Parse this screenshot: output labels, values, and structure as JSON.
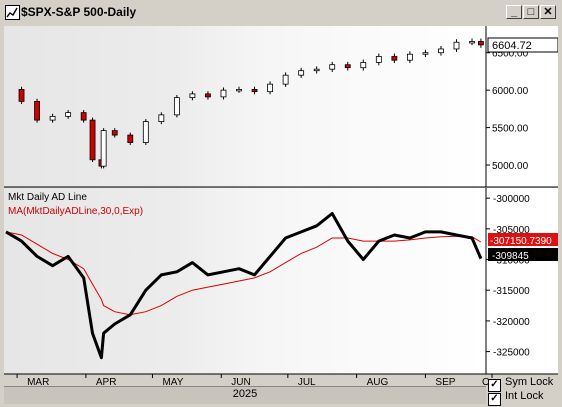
{
  "window": {
    "title": "$SPX-S&P 500-Daily",
    "minimize_glyph": "_",
    "maximize_glyph": "□",
    "close_glyph": "✕"
  },
  "price_panel": {
    "last_price_label": "6604.72",
    "y_ticks": [
      {
        "label": "6500.00",
        "v": 6500
      },
      {
        "label": "6000.00",
        "v": 6000
      },
      {
        "label": "5500.00",
        "v": 5500
      },
      {
        "label": "5000.00",
        "v": 5000
      }
    ]
  },
  "ad_panel": {
    "series_label": "Mkt Daily AD Line",
    "ma_label": "MA(MktDailyADLine,30,0,Exp)",
    "ma_value_label": "-307150.7390",
    "last_value_label": "-309845",
    "y_ticks": [
      {
        "label": "-300000",
        "v": -300000
      },
      {
        "label": "-305000",
        "v": -305000
      },
      {
        "label": "-310000",
        "v": -310000
      },
      {
        "label": "-315000",
        "v": -315000
      },
      {
        "label": "-320000",
        "v": -320000
      },
      {
        "label": "-325000",
        "v": -325000
      }
    ]
  },
  "x_axis": {
    "months": [
      "MAR",
      "APR",
      "MAY",
      "JUN",
      "JUL",
      "AUG",
      "SEP",
      "O"
    ],
    "year": "2025"
  },
  "controls": {
    "sym_lock": {
      "label": "Sym Lock",
      "checked": true
    },
    "int_lock": {
      "label": "Int Lock",
      "checked": true
    }
  },
  "colors": {
    "up_candle": "#ffffff",
    "down_candle": "#cc0000",
    "ad_line": "#000000",
    "ma_line": "#dd0000",
    "ma_label": "#cc0000"
  },
  "chart_data": {
    "type": "line",
    "x": [
      "2025-02-24",
      "2025-03-03",
      "2025-03-10",
      "2025-03-17",
      "2025-03-24",
      "2025-03-31",
      "2025-04-04",
      "2025-04-08",
      "2025-04-09",
      "2025-04-14",
      "2025-04-21",
      "2025-04-28",
      "2025-05-05",
      "2025-05-12",
      "2025-05-19",
      "2025-05-26",
      "2025-06-02",
      "2025-06-09",
      "2025-06-16",
      "2025-06-23",
      "2025-06-30",
      "2025-07-07",
      "2025-07-14",
      "2025-07-21",
      "2025-07-28",
      "2025-08-04",
      "2025-08-11",
      "2025-08-18",
      "2025-08-25",
      "2025-09-01",
      "2025-09-08",
      "2025-09-15",
      "2025-09-22",
      "2025-09-26"
    ],
    "series": [
      {
        "name": "$SPX-S&P 500-Daily",
        "type": "candlestick",
        "values": [
          6010,
          5850,
          5600,
          5650,
          5700,
          5600,
          5070,
          4985,
          5460,
          5400,
          5300,
          5580,
          5670,
          5900,
          5950,
          5910,
          6000,
          6010,
          5980,
          6080,
          6200,
          6260,
          6280,
          6340,
          6300,
          6370,
          6450,
          6400,
          6480,
          6500,
          6550,
          6640,
          6650,
          6604.72
        ]
      },
      {
        "name": "Mkt Daily AD Line",
        "values": [
          -305500,
          -307000,
          -309500,
          -311000,
          -309500,
          -313000,
          -322000,
          -326000,
          -322000,
          -320500,
          -319000,
          -315000,
          -312500,
          -312000,
          -310500,
          -312500,
          -312000,
          -311500,
          -312500,
          -309500,
          -306500,
          -305500,
          -304500,
          -302500,
          -307000,
          -310000,
          -307000,
          -306000,
          -306500,
          -305500,
          -305500,
          -306000,
          -306500,
          -309845
        ]
      },
      {
        "name": "MA(MktDailyADLine,30,0,Exp)",
        "values": [
          -305500,
          -306000,
          -307500,
          -309000,
          -310000,
          -311500,
          -314000,
          -316500,
          -317500,
          -318500,
          -319000,
          -318500,
          -317500,
          -316000,
          -315000,
          -314500,
          -314000,
          -313500,
          -313000,
          -312000,
          -310500,
          -309000,
          -308000,
          -306500,
          -306500,
          -307000,
          -307000,
          -307000,
          -306800,
          -306500,
          -306300,
          -306200,
          -306300,
          -307150.739
        ]
      }
    ],
    "price_ylim": [
      4800,
      6750
    ],
    "ad_ylim": [
      -328000,
      -299000
    ],
    "grid": false,
    "legend": "top-left"
  }
}
